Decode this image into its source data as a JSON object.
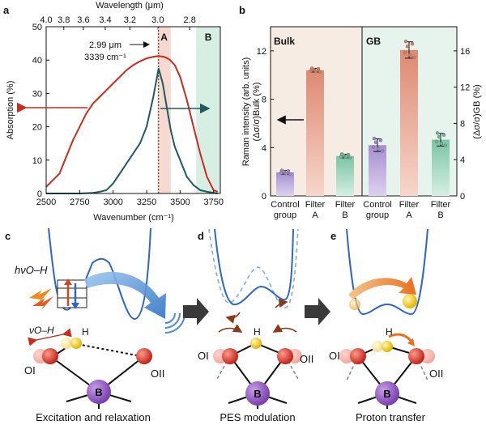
{
  "panels": {
    "a": "a",
    "b": "b",
    "c": "c",
    "d": "d",
    "e": "e"
  },
  "panel_a": {
    "top_axis_label": "Wavelength (μm)",
    "top_ticks": [
      "4.0",
      "3.8",
      "3.6",
      "3.4",
      "3.2",
      "3.0",
      "2.8"
    ],
    "y_label": "Absorption (%)",
    "x_label": "Wavenumber (cm⁻¹)",
    "annotation_line1": "2.99 μm",
    "annotation_line2": "3339 cm⁻¹",
    "band_A_label": "A",
    "band_B_label": "B",
    "colors": {
      "red": "#cc2a1e",
      "teal": "#1e5a60",
      "band_A": "#f2c9bd",
      "band_B": "#cde9dd"
    }
  },
  "panel_b": {
    "y_label_left": "Raman intensity (arb. units)",
    "y_label_left2": "(Δσ/σ)Bulk (%)",
    "y_label_right": "(Δσ/σ)GB (%)",
    "section_bulk": "Bulk",
    "section_gb": "GB",
    "category_lines": [
      [
        "Control",
        "group"
      ],
      [
        "Filter",
        "A"
      ],
      [
        "Filter",
        "B"
      ],
      [
        "Control",
        "group"
      ],
      [
        "Filter",
        "A"
      ],
      [
        "Filter",
        "B"
      ]
    ],
    "colors": {
      "purple": "#b9a3d6",
      "red": "#e49a84",
      "green": "#8ccdb2"
    }
  },
  "chart_data": [
    {
      "type": "line",
      "x_axis": {
        "label": "Wavenumber (cm⁻¹)",
        "ticks": [
          2500,
          2750,
          3000,
          3250,
          3500,
          3750
        ],
        "range": [
          2500,
          3800
        ]
      },
      "y_axis": {
        "label": "Absorption (%)",
        "ticks": [
          0,
          10,
          20,
          30,
          40,
          50
        ],
        "range": [
          0,
          50
        ]
      },
      "top_axis": {
        "label": "Wavelength (μm)",
        "ticks": [
          4.0,
          3.8,
          3.6,
          3.4,
          3.2,
          3.0,
          2.8
        ]
      },
      "bands": [
        {
          "label": "A",
          "range": [
            3330,
            3430
          ]
        },
        {
          "label": "B",
          "range": [
            3620,
            3800
          ]
        }
      ],
      "marker_x": 3339,
      "series": [
        {
          "x": [
            2500,
            2600,
            2700,
            2800,
            2850,
            2900,
            2950,
            3000,
            3050,
            3100,
            3150,
            3200,
            3250,
            3300,
            3339,
            3380,
            3420,
            3460,
            3500,
            3550,
            3600,
            3650,
            3700,
            3750,
            3780
          ],
          "y": [
            2,
            6,
            16,
            24,
            27,
            29,
            31,
            33,
            35,
            37,
            38.5,
            39.6,
            40.5,
            41,
            41.2,
            41,
            40.2,
            38.5,
            35,
            28,
            20,
            12,
            5,
            1,
            0.5
          ]
        },
        {
          "x": [
            2500,
            2750,
            2850,
            2900,
            2950,
            3000,
            3050,
            3100,
            3150,
            3200,
            3250,
            3300,
            3339,
            3370,
            3400,
            3430,
            3460,
            3500,
            3550,
            3600,
            3650,
            3700,
            3750,
            3780
          ],
          "y": [
            0,
            0,
            0.2,
            0.5,
            1,
            3,
            6,
            9,
            12,
            15,
            20,
            29,
            37.5,
            33,
            26,
            19,
            14,
            10,
            5,
            2.5,
            1,
            0.5,
            0.2,
            0
          ]
        }
      ]
    },
    {
      "type": "bar",
      "categories": [
        "Control group",
        "Filter A",
        "Filter B"
      ],
      "y_axis_left": {
        "ticks": [
          0,
          4,
          8,
          12
        ],
        "range": [
          0,
          14
        ]
      },
      "y_axis_right": {
        "ticks": [
          0,
          4,
          8,
          12,
          16
        ],
        "range": [
          0,
          18.67
        ]
      },
      "series": [
        {
          "values": [
            1.95,
            10.4,
            3.3
          ],
          "errors": [
            0.15,
            0.15,
            0.15
          ]
        },
        {
          "values": [
            5.6,
            16.1,
            6.2
          ],
          "errors": [
            0.7,
            0.9,
            0.7
          ]
        }
      ]
    }
  ],
  "panel_c": {
    "energy_label": "hνO–H",
    "vib_label": "νO–H",
    "H": "H",
    "O_I": "OI",
    "O_II": "OII",
    "B": "B",
    "caption": "Excitation and relaxation"
  },
  "panel_d": {
    "H": "H",
    "O_I": "OI",
    "O_II": "OII",
    "B": "B",
    "caption": "PES modulation"
  },
  "panel_e": {
    "H": "H",
    "O_I": "OI",
    "O_II": "OII",
    "B": "B",
    "caption": "Proton transfer"
  }
}
